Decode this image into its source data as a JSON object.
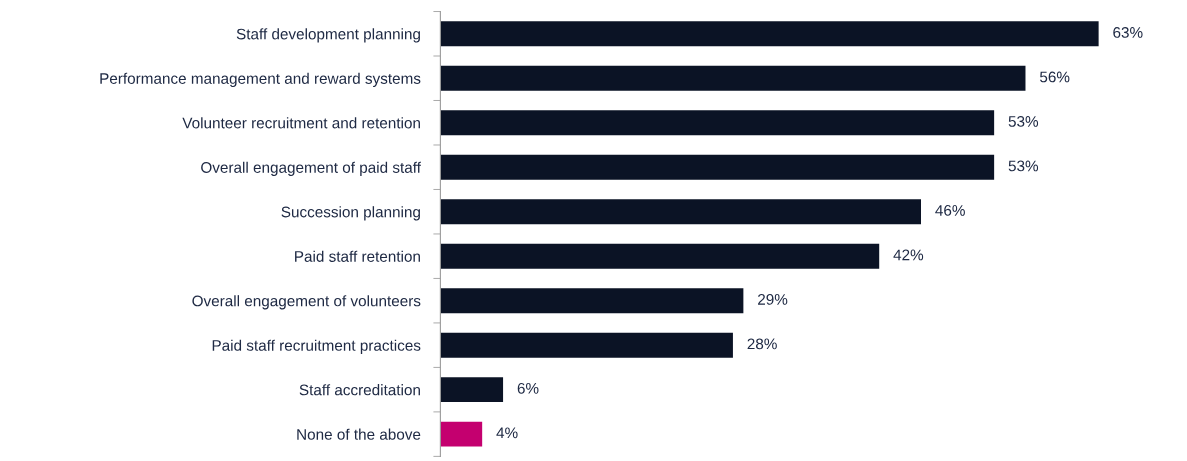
{
  "chart_data": {
    "type": "bar",
    "orientation": "horizontal",
    "categories": [
      "Staff development planning",
      "Performance management and reward systems",
      "Volunteer recruitment and retention",
      "Overall engagement of paid staff",
      "Succession planning",
      "Paid staff retention",
      "Overall engagement of volunteers",
      "Paid staff recruitment practices",
      "Staff accreditation",
      "None of the above"
    ],
    "values": [
      63,
      56,
      53,
      53,
      46,
      42,
      29,
      28,
      6,
      4
    ],
    "value_labels": [
      "63%",
      "56%",
      "53%",
      "53%",
      "46%",
      "42%",
      "29%",
      "28%",
      "6%",
      "4%"
    ],
    "colors": [
      "#0b1325",
      "#0b1325",
      "#0b1325",
      "#0b1325",
      "#0b1325",
      "#0b1325",
      "#0b1325",
      "#0b1325",
      "#0b1325",
      "#c4006f"
    ],
    "grid": false,
    "legend": false
  }
}
